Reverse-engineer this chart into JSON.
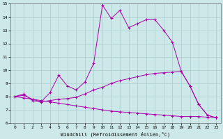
{
  "xlabel": "Windchill (Refroidissement éolien,°C)",
  "xlim": [
    -0.5,
    23.5
  ],
  "ylim": [
    6,
    15
  ],
  "yticks": [
    6,
    7,
    8,
    9,
    10,
    11,
    12,
    13,
    14,
    15
  ],
  "xticks": [
    0,
    1,
    2,
    3,
    4,
    5,
    6,
    7,
    8,
    9,
    10,
    11,
    12,
    13,
    14,
    15,
    16,
    17,
    18,
    19,
    20,
    21,
    22,
    23
  ],
  "background_color": "#cce8e8",
  "grid_color": "#aacccc",
  "line_color": "#aa00aa",
  "line1_x": [
    0,
    1,
    2,
    3,
    4,
    5,
    6,
    7,
    8,
    9,
    10,
    11,
    12,
    13,
    14,
    15,
    16,
    17,
    18,
    19,
    20,
    21,
    22,
    23
  ],
  "line1_y": [
    8.0,
    8.2,
    7.7,
    7.6,
    8.3,
    9.6,
    8.8,
    8.5,
    9.1,
    10.5,
    14.9,
    13.9,
    14.5,
    13.2,
    13.5,
    13.8,
    13.8,
    13.0,
    12.1,
    9.9,
    8.8,
    7.4,
    6.6,
    6.4
  ],
  "line2_x": [
    0,
    1,
    2,
    3,
    4,
    5,
    6,
    7,
    8,
    9,
    10,
    11,
    12,
    13,
    14,
    15,
    16,
    17,
    18,
    19,
    20,
    21,
    22,
    23
  ],
  "line2_y": [
    8.0,
    8.1,
    7.8,
    7.6,
    7.7,
    7.8,
    7.85,
    7.95,
    8.2,
    8.5,
    8.7,
    9.0,
    9.2,
    9.35,
    9.5,
    9.65,
    9.75,
    9.8,
    9.85,
    9.9,
    8.8,
    7.4,
    6.6,
    6.4
  ],
  "line3_x": [
    0,
    1,
    2,
    3,
    4,
    5,
    6,
    7,
    8,
    9,
    10,
    11,
    12,
    13,
    14,
    15,
    16,
    17,
    18,
    19,
    20,
    21,
    22,
    23
  ],
  "line3_y": [
    8.0,
    7.9,
    7.8,
    7.7,
    7.6,
    7.5,
    7.4,
    7.3,
    7.2,
    7.1,
    7.0,
    6.9,
    6.85,
    6.8,
    6.75,
    6.7,
    6.65,
    6.6,
    6.55,
    6.5,
    6.5,
    6.5,
    6.44,
    6.42
  ]
}
